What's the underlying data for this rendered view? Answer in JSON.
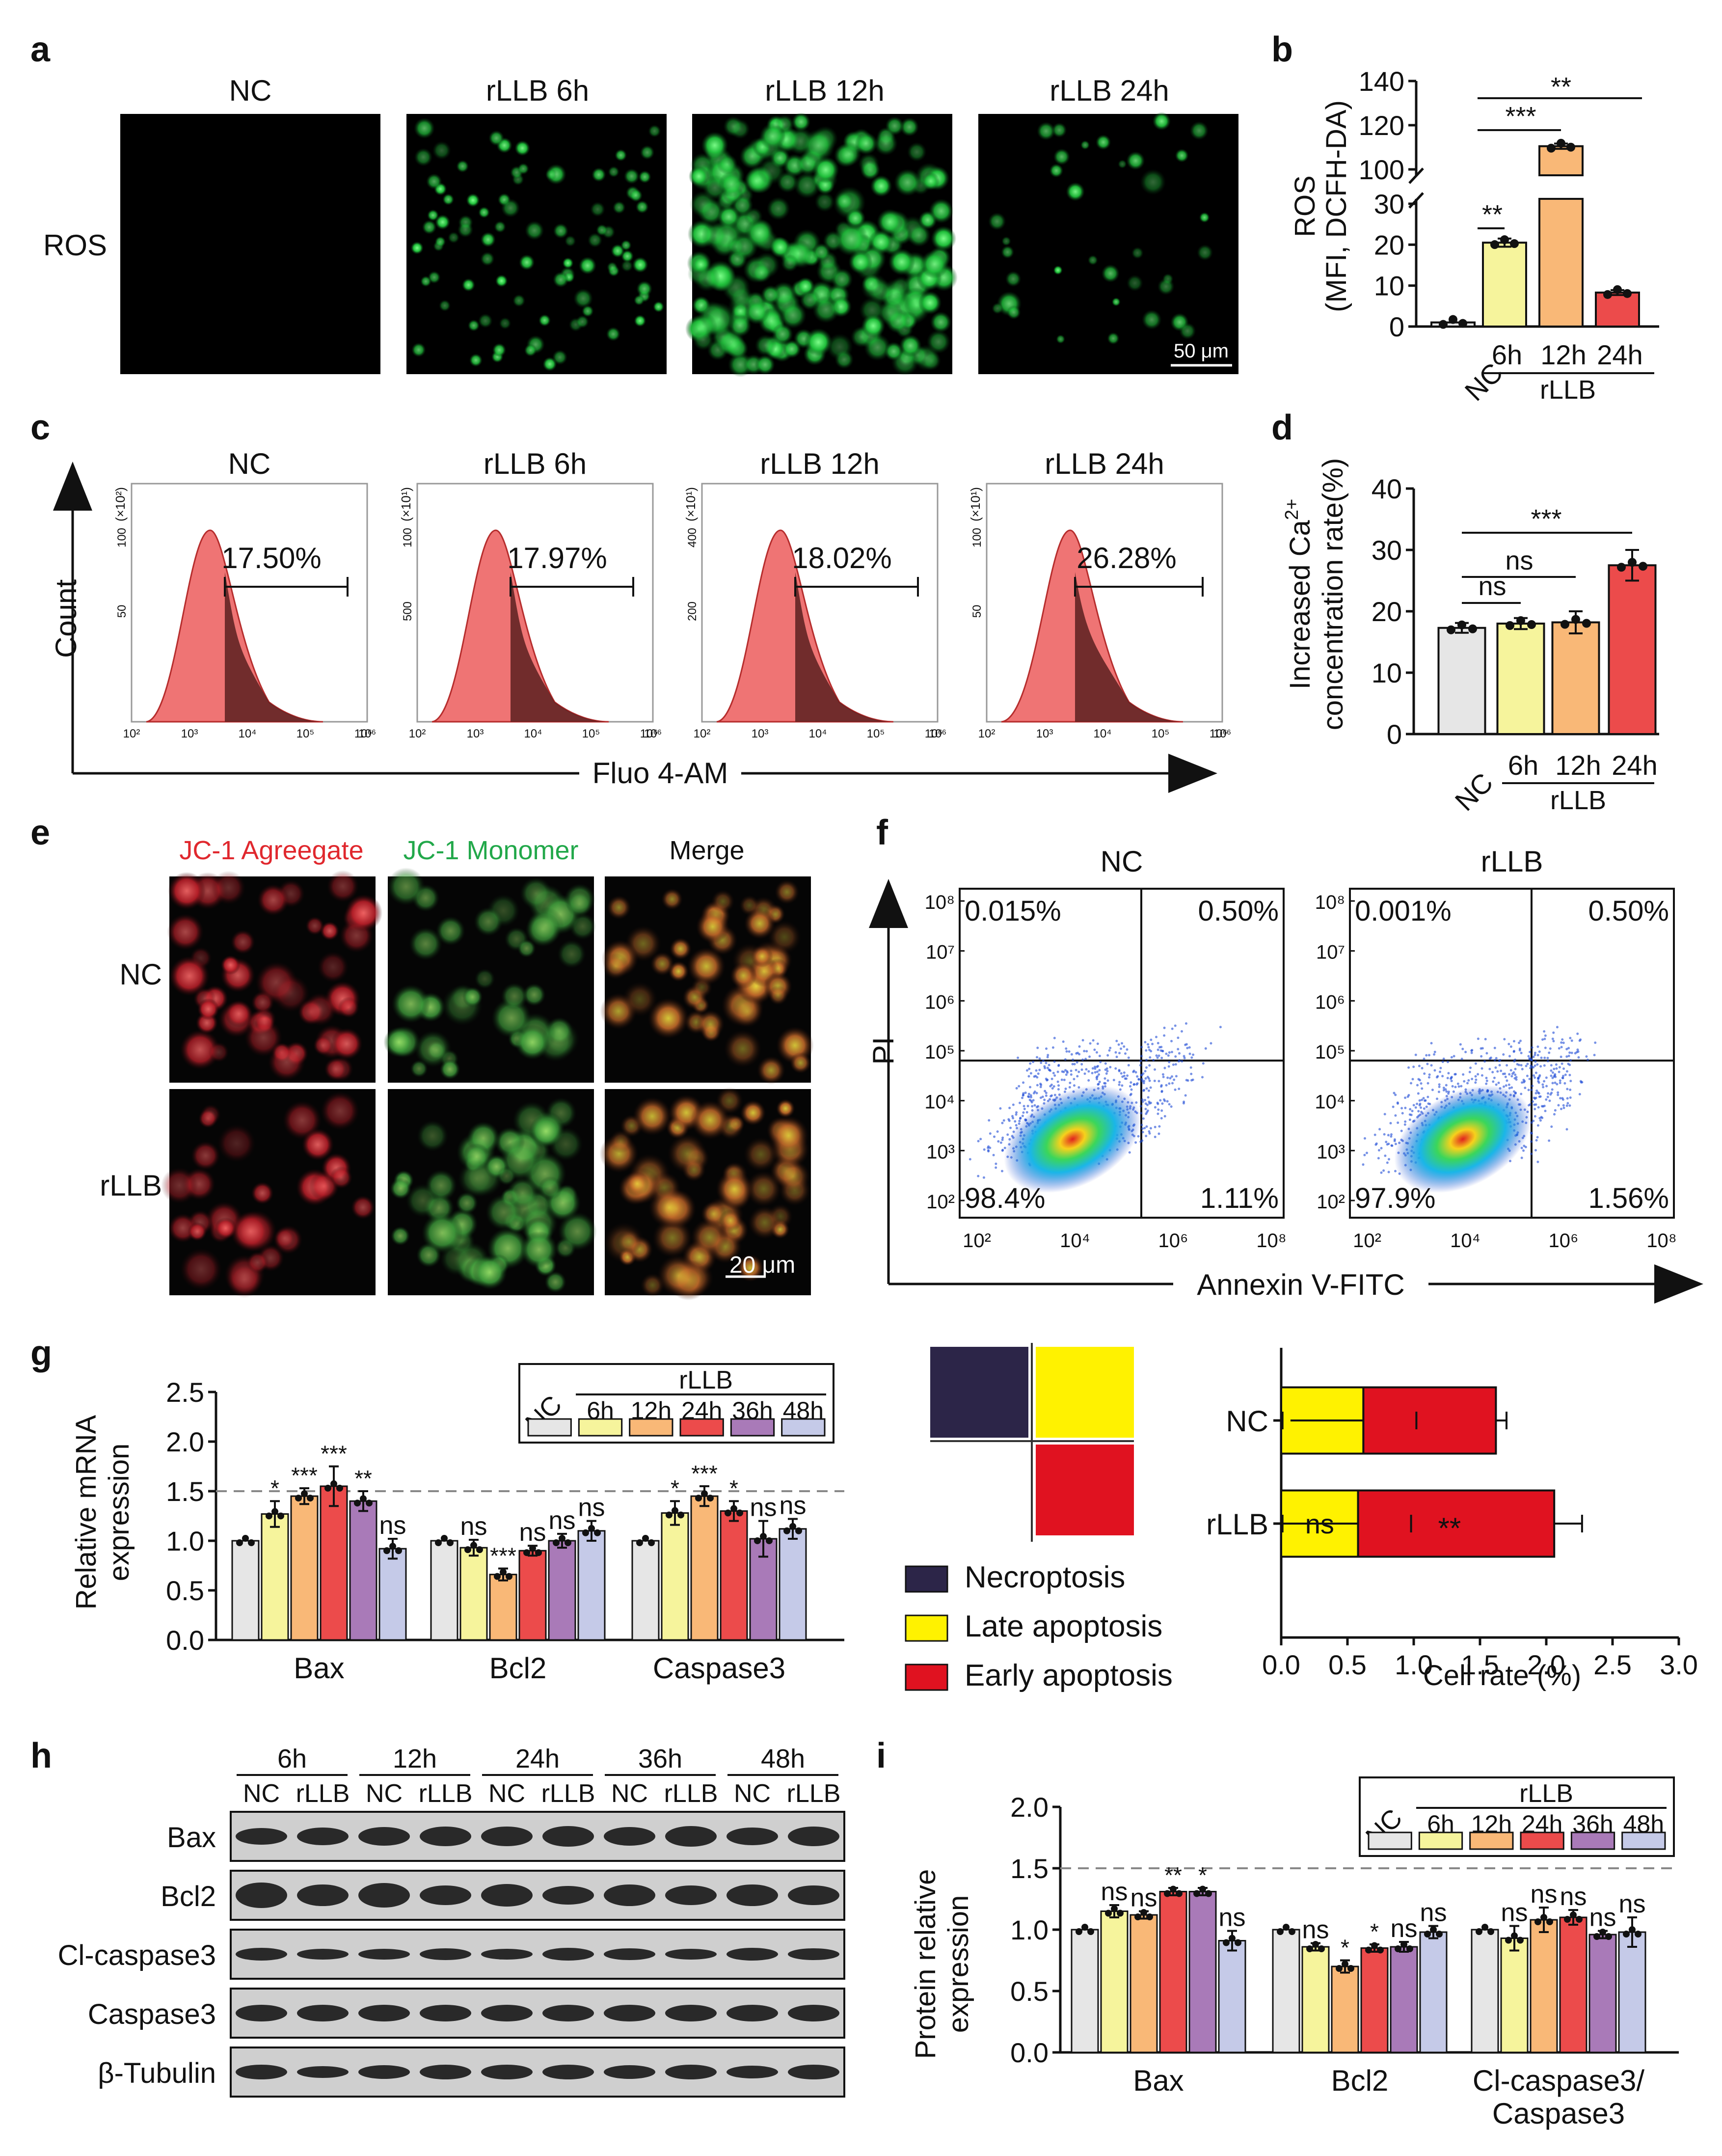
{
  "figure": {
    "panel_letters": [
      "a",
      "b",
      "c",
      "d",
      "e",
      "f",
      "g",
      "h",
      "i"
    ],
    "colors": {
      "NC": "#e6e6e6",
      "h6": "#f6f49c",
      "h12": "#f9b877",
      "h24": "#ec4b4b",
      "h36": "#a97ab8",
      "h48": "#c5cae8",
      "necroptosis": "#2c2548",
      "late": "#fff200",
      "early": "#e01220",
      "ros_green": "#2cd44a",
      "flow_fill": "#ef7474",
      "flow_dark": "#5a2020"
    }
  },
  "panel_a": {
    "col_titles": [
      "NC",
      "rLLB 6h",
      "rLLB 12h",
      "rLLB 24h"
    ],
    "row_label": "ROS",
    "scale_bar": "50 μm"
  },
  "chart_data": [
    {
      "id": "b",
      "type": "bar",
      "ylabel_1": "ROS",
      "ylabel_2": "(MFI, DCFH-DA)",
      "categories": [
        "NC",
        "6h",
        "12h",
        "24h"
      ],
      "group_label": "rLLB",
      "values": [
        1,
        20.5,
        110.5,
        8.3
      ],
      "errors": [
        0.3,
        1.0,
        1.2,
        0.6
      ],
      "ylim_low": [
        0,
        30
      ],
      "ylim_high": [
        100,
        140
      ],
      "yticks_low": [
        "0",
        "10",
        "20",
        "30"
      ],
      "yticks_high": [
        "100",
        "120",
        "140"
      ],
      "significance": [
        {
          "from": "NC",
          "to": "6h",
          "label": "**"
        },
        {
          "from": "NC",
          "to": "12h",
          "label": "***"
        },
        {
          "from": "NC",
          "to": "24h",
          "label": "**"
        }
      ]
    },
    {
      "id": "c",
      "type": "histogram",
      "titles": [
        "NC",
        "rLLB 6h",
        "rLLB 12h",
        "rLLB 24h"
      ],
      "percentages": [
        "17.50%",
        "17.97%",
        "18.02%",
        "26.28%"
      ],
      "exp_labels": [
        "(×10²)",
        "(×10¹)",
        "(×10¹)",
        "(×10¹)"
      ],
      "ytop": [
        "100",
        "100",
        "400",
        "100"
      ],
      "ymid": [
        "50",
        "500",
        "200",
        "50"
      ],
      "xticks": [
        "10²",
        "10³",
        "10⁴",
        "10⁵",
        "10⁶"
      ],
      "xlabel": "Fluo 4-AM",
      "ylabel": "Count"
    },
    {
      "id": "d",
      "type": "bar",
      "ylabel_1": "Increased Ca",
      "ylabel_sup": "2+",
      "ylabel_2": "concentration rate(%)",
      "categories": [
        "NC",
        "6h",
        "12h",
        "24h"
      ],
      "group_label": "rLLB",
      "values": [
        17.3,
        18.0,
        18.2,
        27.5
      ],
      "errors": [
        0.8,
        0.9,
        1.8,
        2.5
      ],
      "ylim": [
        0,
        40
      ],
      "yticks": [
        "0",
        "10",
        "20",
        "30",
        "40"
      ],
      "significance": [
        {
          "from": "NC",
          "to": "6h",
          "label": "ns"
        },
        {
          "from": "NC",
          "to": "12h",
          "label": "ns"
        },
        {
          "from": "NC",
          "to": "24h",
          "label": "***"
        }
      ]
    },
    {
      "id": "f",
      "type": "scatter",
      "titles": [
        "NC",
        "rLLB"
      ],
      "quadrants": [
        {
          "ul": "0.015%",
          "ur": "0.50%",
          "ll": "98.4%",
          "lr": "1.11%"
        },
        {
          "ul": "0.001%",
          "ur": "0.50%",
          "ll": "97.9%",
          "lr": "1.56%"
        }
      ],
      "yticks": [
        "10²",
        "10³",
        "10⁴",
        "10⁵",
        "10⁶",
        "10⁷",
        "10⁸"
      ],
      "xticks": [
        "10²",
        "10⁴",
        "10⁶",
        "10⁸"
      ],
      "xlabel": "Annexin V-FITC",
      "ylabel": "PI"
    },
    {
      "id": "f_bar",
      "type": "bar",
      "orientation": "horizontal",
      "stacked": true,
      "categories": [
        "NC",
        "rLLB"
      ],
      "series": [
        {
          "name": "Necroptosis",
          "values": [
            0.0,
            0.0
          ]
        },
        {
          "name": "Late apoptosis",
          "values": [
            0.62,
            0.58
          ]
        },
        {
          "name": "Early apoptosis",
          "values": [
            1.0,
            1.48
          ]
        }
      ],
      "error_late": [
        0.55,
        0.58
      ],
      "error_total": [
        1.7,
        2.27
      ],
      "annotations": [
        "ns",
        "**"
      ],
      "xlabel": "Cell rate (%)",
      "xlim": [
        0,
        3.0
      ],
      "xticks": [
        "0.0",
        "0.5",
        "1.0",
        "1.5",
        "2.0",
        "2.5",
        "3.0"
      ],
      "legend": [
        "Necroptosis",
        "Late apoptosis",
        "Early apoptosis"
      ]
    },
    {
      "id": "g",
      "type": "bar",
      "ylabel_1": "Relative mRNA",
      "ylabel_2": "expression",
      "groups": [
        "Bax",
        "Bcl2",
        "Caspase3"
      ],
      "series_names": [
        "NC",
        "6h",
        "12h",
        "24h",
        "36h",
        "48h"
      ],
      "legend_group": "rLLB",
      "values": [
        [
          1.0,
          1.27,
          1.45,
          1.55,
          1.4,
          0.92
        ],
        [
          1.0,
          0.93,
          0.66,
          0.9,
          1.0,
          1.1
        ],
        [
          1.0,
          1.28,
          1.45,
          1.3,
          1.02,
          1.12
        ]
      ],
      "errors": [
        [
          0.02,
          0.13,
          0.08,
          0.2,
          0.1,
          0.1
        ],
        [
          0.03,
          0.08,
          0.06,
          0.05,
          0.07,
          0.1
        ],
        [
          0.02,
          0.12,
          0.1,
          0.1,
          0.18,
          0.1
        ]
      ],
      "marks": [
        [
          "",
          "*",
          "***",
          "***",
          "**",
          "ns"
        ],
        [
          "",
          "ns",
          "***",
          "ns",
          "ns",
          "ns"
        ],
        [
          "",
          "*",
          "***",
          "*",
          "ns",
          "ns"
        ]
      ],
      "ylim": [
        0,
        2.5
      ],
      "yticks": [
        "0.0",
        "0.5",
        "1.0",
        "1.5",
        "2.0",
        "2.5"
      ],
      "dashed": 1.5
    },
    {
      "id": "i",
      "type": "bar",
      "ylabel_1": "Protein relative",
      "ylabel_2": "expression",
      "groups": [
        "Bax",
        "Bcl2",
        "Cl-caspase3/"
      ],
      "group_line2": [
        "",
        "",
        "Caspase3"
      ],
      "series_names": [
        "NC",
        "6h",
        "12h",
        "24h",
        "36h",
        "48h"
      ],
      "legend_group": "rLLB",
      "values": [
        [
          1.0,
          1.15,
          1.12,
          1.31,
          1.31,
          0.91
        ],
        [
          1.0,
          0.86,
          0.7,
          0.85,
          0.86,
          0.98
        ],
        [
          1.0,
          0.93,
          1.08,
          1.1,
          0.96,
          0.98
        ]
      ],
      "errors": [
        [
          0.01,
          0.05,
          0.03,
          0.03,
          0.03,
          0.08
        ],
        [
          0.02,
          0.03,
          0.05,
          0.03,
          0.04,
          0.05
        ],
        [
          0.02,
          0.1,
          0.1,
          0.06,
          0.03,
          0.12
        ]
      ],
      "marks": [
        [
          "",
          "ns",
          "ns",
          "**",
          "*",
          "ns"
        ],
        [
          "",
          "ns",
          "*",
          "*",
          "ns",
          "ns"
        ],
        [
          "",
          "ns",
          "ns",
          "ns",
          "ns",
          "ns"
        ]
      ],
      "ylim": [
        0,
        2.0
      ],
      "yticks": [
        "0.0",
        "0.5",
        "1.0",
        "1.5",
        "2.0"
      ],
      "dashed": 1.5
    }
  ],
  "panel_e": {
    "col_titles": [
      "JC-1 Agreegate",
      "JC-1 Monomer",
      "Merge"
    ],
    "col_colors": [
      "#e0282e",
      "#22a84a",
      "#111111"
    ],
    "row_labels": [
      "NC",
      "rLLB"
    ],
    "scale_bar": "20 μm"
  },
  "panel_h": {
    "times": [
      "6h",
      "12h",
      "24h",
      "36h",
      "48h"
    ],
    "lane_labels": [
      "NC",
      "rLLB"
    ],
    "proteins": [
      "Bax",
      "Bcl2",
      "Cl-caspase3",
      "Caspase3",
      "β-Tubulin"
    ]
  }
}
